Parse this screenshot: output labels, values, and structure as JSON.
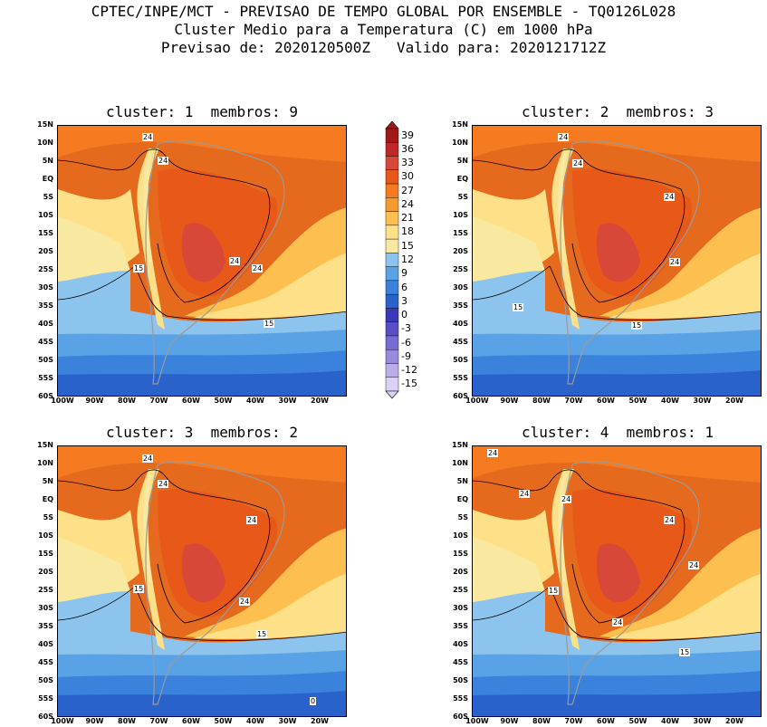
{
  "header": {
    "line1": "CPTEC/INPE/MCT - PREVISAO DE TEMPO GLOBAL POR ENSEMBLE - TQ0126L028",
    "line2": "Cluster Medio para a Temperatura (C) em 1000 hPa",
    "line3": "Previsao de: 2020120500Z   Valido para: 2020121712Z"
  },
  "panels": [
    {
      "title": "cluster: 1  membros: 9",
      "labels": [
        "24",
        "24",
        "24",
        "24",
        "15",
        "15"
      ]
    },
    {
      "title": "cluster: 2  membros: 3",
      "labels": [
        "24",
        "24",
        "24",
        "24",
        "15",
        "15"
      ]
    },
    {
      "title": "cluster: 3  membros: 2",
      "labels": [
        "24",
        "24",
        "24",
        "24",
        "15",
        "15",
        "0"
      ]
    },
    {
      "title": "cluster: 4  membros: 1",
      "labels": [
        "24",
        "24",
        "24",
        "24",
        "24",
        "24",
        "15",
        "15"
      ]
    }
  ],
  "lat_labels": [
    "15N",
    "10N",
    "5N",
    "EQ",
    "5S",
    "10S",
    "15S",
    "20S",
    "25S",
    "30S",
    "35S",
    "40S",
    "45S",
    "50S",
    "55S",
    "60S"
  ],
  "lon_labels": [
    "100W",
    "90W",
    "80W",
    "70W",
    "60W",
    "50W",
    "40W",
    "30W",
    "20W"
  ],
  "colorbar": {
    "levels": [
      "39",
      "36",
      "33",
      "30",
      "27",
      "24",
      "21",
      "18",
      "15",
      "12",
      "9",
      "6",
      "3",
      "0",
      "-3",
      "-6",
      "-9",
      "-12",
      "-15"
    ],
    "colors": [
      "#a01818",
      "#c02828",
      "#d84838",
      "#e85818",
      "#f57a20",
      "#f59a30",
      "#fdc050",
      "#fde088",
      "#f8e8a0",
      "#8cc4ee",
      "#5aa2e6",
      "#3a82dc",
      "#2a62cc",
      "#3a3ab8",
      "#5a4ec8",
      "#7a6ad4",
      "#9a8ade",
      "#baaee8",
      "#dad2f2"
    ]
  }
}
